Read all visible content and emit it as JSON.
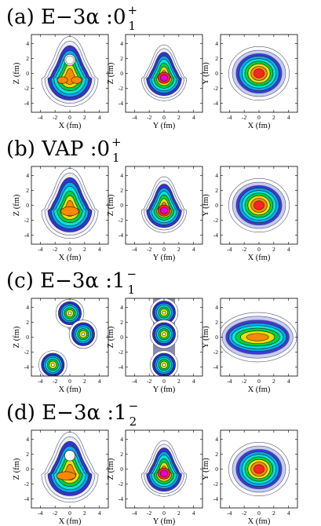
{
  "figure": {
    "panels": [
      {
        "label": "(a) E−3α :0",
        "state_sup": "+",
        "state_sub": "1",
        "plots": [
          {
            "xlabel": "X (fm)",
            "ylabel": "Z (fm)",
            "shape": "a-xz"
          },
          {
            "xlabel": "Y (fm)",
            "ylabel": "Z (fm)",
            "shape": "a-yz"
          },
          {
            "xlabel": "X (fm)",
            "ylabel": "Y (fm)",
            "shape": "round-xy"
          }
        ]
      },
      {
        "label": "(b) VAP :0",
        "state_sup": "+",
        "state_sub": "1",
        "plots": [
          {
            "xlabel": "X (fm)",
            "ylabel": "Z (fm)",
            "shape": "pear-wide"
          },
          {
            "xlabel": "Y (fm)",
            "ylabel": "Z (fm)",
            "shape": "pear"
          },
          {
            "xlabel": "X (fm)",
            "ylabel": "Y (fm)",
            "shape": "round-xy"
          }
        ]
      },
      {
        "label": "(c) E−3α :1",
        "state_sup": "−",
        "state_sub": "1",
        "plots": [
          {
            "xlabel": "X (fm)",
            "ylabel": "Z (fm)",
            "shape": "three-alpha-diag"
          },
          {
            "xlabel": "Y (fm)",
            "ylabel": "Z (fm)",
            "shape": "three-alpha-vert"
          },
          {
            "xlabel": "X (fm)",
            "ylabel": "Y (fm)",
            "shape": "elongated-xy"
          }
        ]
      },
      {
        "label": "(d) E−3α :1",
        "state_sup": "−",
        "state_sub": "2",
        "plots": [
          {
            "xlabel": "X (fm)",
            "ylabel": "Z (fm)",
            "shape": "d-xz"
          },
          {
            "xlabel": "Y (fm)",
            "ylabel": "Z (fm)",
            "shape": "d-yz"
          },
          {
            "xlabel": "X (fm)",
            "ylabel": "Y (fm)",
            "shape": "round-xy"
          }
        ]
      }
    ],
    "x_ticks": [
      "-4",
      "-2",
      "0",
      "2",
      "4"
    ],
    "y_ticks": [
      "4",
      "2",
      "0",
      "-2",
      "-4"
    ],
    "contour_colors": [
      "#9a9ab0",
      "#2b2bd0",
      "#00a8f0",
      "#00e8e0",
      "#00d040",
      "#e8e000",
      "#ff8800",
      "#ff2222",
      "#e000e0"
    ]
  }
}
